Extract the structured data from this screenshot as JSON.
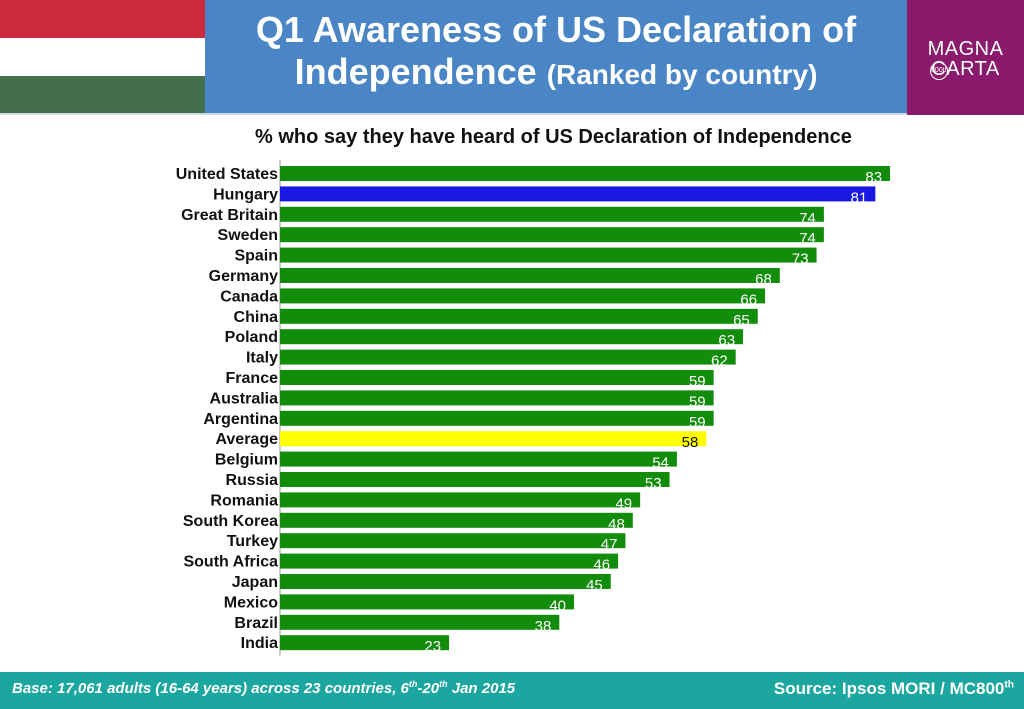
{
  "header": {
    "title_line1": "Q1 Awareness of US Declaration of",
    "title_line2": "Independence",
    "title_sub": "(Ranked by country)",
    "flag_colors": [
      "#cd2a3e",
      "#ffffff",
      "#436f4d"
    ],
    "logo": {
      "word1": "MAGNA",
      "word2": "CARTA",
      "badge": "800th",
      "bg_color": "#8a1a6b"
    }
  },
  "chart_data": {
    "type": "bar",
    "orientation": "horizontal",
    "title": "% who say they have heard of US Declaration of Independence",
    "categories": [
      "United States",
      "Hungary",
      "Great Britain",
      "Sweden",
      "Spain",
      "Germany",
      "Canada",
      "China",
      "Poland",
      "Italy",
      "France",
      "Australia",
      "Argentina",
      "Average",
      "Belgium",
      "Russia",
      "Romania",
      "South Korea",
      "Turkey",
      "South Africa",
      "Japan",
      "Mexico",
      "Brazil",
      "India"
    ],
    "values": [
      83,
      81,
      74,
      74,
      73,
      68,
      66,
      65,
      63,
      62,
      59,
      59,
      59,
      58,
      54,
      53,
      49,
      48,
      47,
      46,
      45,
      40,
      38,
      23
    ],
    "xlim": [
      0,
      100
    ],
    "colors": {
      "default": "#128c0b",
      "highlight": "#1818e0",
      "average": "#ffff00"
    },
    "highlight_category": "Hungary",
    "average_category": "Average",
    "grid": false,
    "legend": "none"
  },
  "footer": {
    "base_prefix": "Base: 17,061 adults (16-64 years) across 23 countries, 6",
    "base_sup1": "th",
    "base_mid": "-20",
    "base_sup2": "th",
    "base_suffix": " Jan 2015",
    "source_text": "Source: Ipsos MORI / MC800",
    "source_sup": "th"
  }
}
